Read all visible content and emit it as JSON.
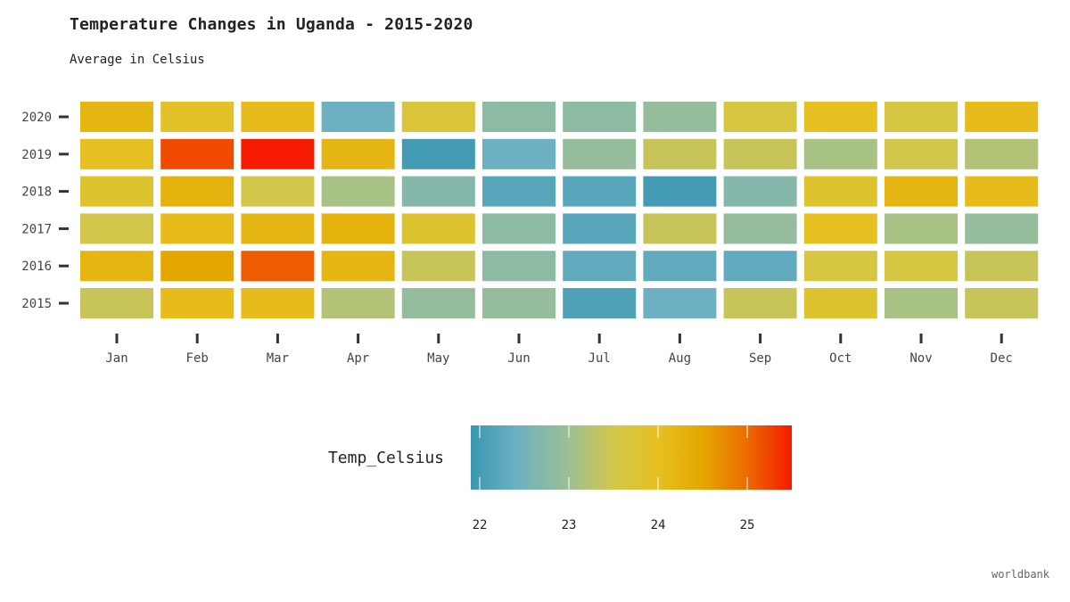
{
  "title": "Temperature Changes in Uganda - 2015-2020",
  "subtitle": "Average in Celsius",
  "caption": "worldbank",
  "chart_data": {
    "type": "heatmap",
    "title": "Temperature Changes in Uganda - 2015-2020",
    "subtitle": "Average in Celsius",
    "x_categories": [
      "Jan",
      "Feb",
      "Mar",
      "Apr",
      "May",
      "Jun",
      "Jul",
      "Aug",
      "Sep",
      "Oct",
      "Nov",
      "Dec"
    ],
    "y_categories": [
      "2020",
      "2019",
      "2018",
      "2017",
      "2016",
      "2015"
    ],
    "values": {
      "2020": [
        24.2,
        23.9,
        24.1,
        22.4,
        23.7,
        22.8,
        22.8,
        22.9,
        23.6,
        24.0,
        23.6,
        24.1
      ],
      "2019": [
        24.0,
        25.2,
        25.5,
        24.2,
        22.0,
        22.4,
        22.9,
        23.4,
        23.4,
        23.1,
        23.5,
        23.2
      ],
      "2018": [
        23.8,
        24.3,
        23.5,
        23.1,
        22.7,
        22.2,
        22.2,
        22.0,
        22.7,
        23.8,
        24.2,
        24.1
      ],
      "2017": [
        23.5,
        24.1,
        24.2,
        24.3,
        23.8,
        22.8,
        22.2,
        23.4,
        22.9,
        24.0,
        23.1,
        22.9
      ],
      "2016": [
        24.2,
        24.5,
        25.1,
        24.2,
        23.4,
        22.8,
        22.3,
        22.3,
        22.3,
        23.6,
        23.6,
        23.4
      ],
      "2015": [
        23.4,
        24.1,
        24.1,
        23.2,
        22.9,
        22.9,
        22.1,
        22.4,
        23.4,
        23.8,
        23.1,
        23.4
      ]
    },
    "legend": {
      "title": "Temp_Celsius",
      "ticks": [
        22,
        23,
        24,
        25
      ],
      "min": 21.9,
      "max": 25.5,
      "position": "bottom",
      "colors": [
        {
          "value": 21.9,
          "color": "#3a97b0"
        },
        {
          "value": 22.4,
          "color": "#6cb0c2"
        },
        {
          "value": 23.0,
          "color": "#9dbf93"
        },
        {
          "value": 23.5,
          "color": "#d2c74a"
        },
        {
          "value": 24.0,
          "color": "#e6c020"
        },
        {
          "value": 24.5,
          "color": "#e4a700"
        },
        {
          "value": 25.0,
          "color": "#ec6b00"
        },
        {
          "value": 25.5,
          "color": "#f51a00"
        }
      ]
    }
  }
}
